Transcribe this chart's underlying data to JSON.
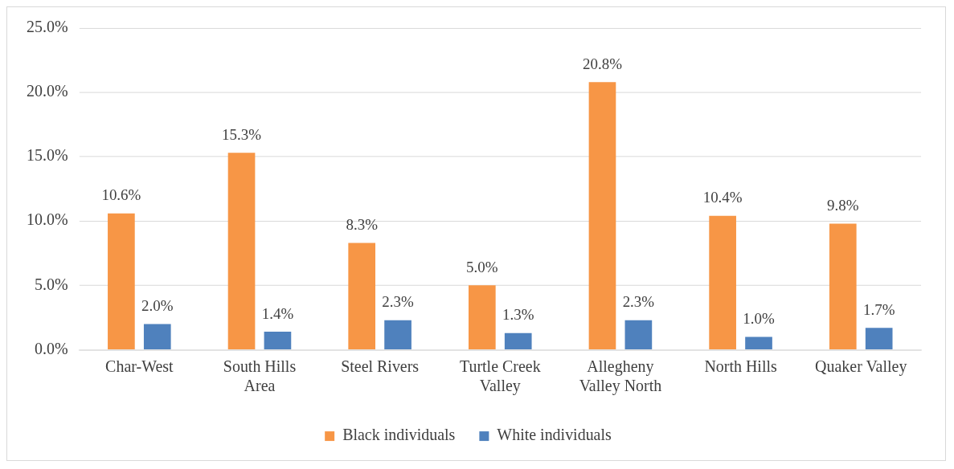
{
  "chart_data": {
    "type": "bar",
    "categories": [
      "Char-West",
      "South Hills Area",
      "Steel Rivers",
      "Turtle Creek Valley",
      "Allegheny Valley North",
      "North Hills",
      "Quaker Valley"
    ],
    "series": [
      {
        "name": "Black individuals",
        "color": "#f79646",
        "values": [
          10.6,
          15.3,
          8.3,
          5.0,
          20.8,
          10.4,
          9.8
        ],
        "value_labels": [
          "10.6%",
          "15.3%",
          "8.3%",
          "5.0%",
          "20.8%",
          "10.4%",
          "9.8%"
        ]
      },
      {
        "name": "White individuals",
        "color": "#4f81bd",
        "values": [
          2.0,
          1.4,
          2.3,
          1.3,
          2.3,
          1.0,
          1.7
        ],
        "value_labels": [
          "2.0%",
          "1.4%",
          "2.3%",
          "1.3%",
          "2.3%",
          "1.0%",
          "1.7%"
        ]
      }
    ],
    "ylim": [
      0,
      25
    ],
    "yticks": [
      {
        "value": 0,
        "label": "0.0%"
      },
      {
        "value": 5,
        "label": "5.0%"
      },
      {
        "value": 10,
        "label": "10.0%"
      },
      {
        "value": 15,
        "label": "15.0%"
      },
      {
        "value": 20,
        "label": "20.0%"
      },
      {
        "value": 25,
        "label": "25.0%"
      }
    ],
    "grid": "y",
    "legend": "bottom"
  }
}
